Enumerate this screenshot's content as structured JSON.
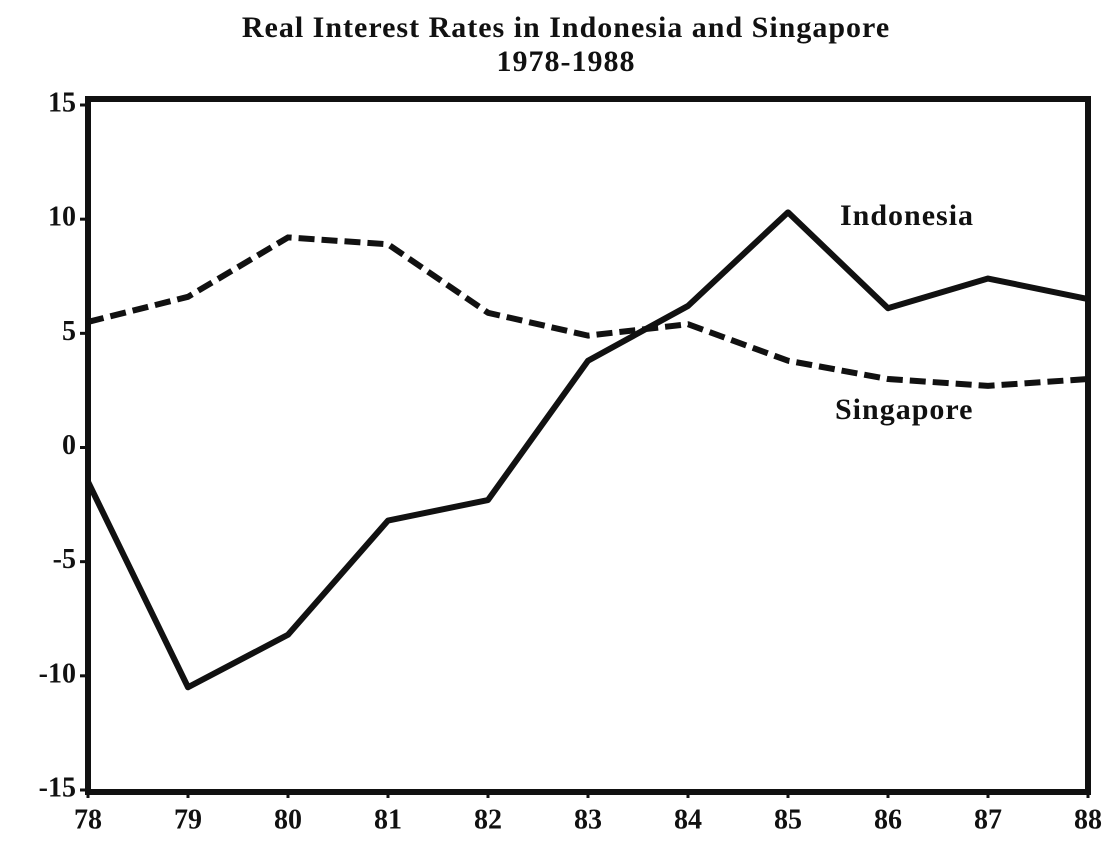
{
  "chart_data": {
    "type": "line",
    "title": "Real Interest Rates in Indonesia and Singapore",
    "subtitle": "1978-1988",
    "x": [
      78,
      79,
      80,
      81,
      82,
      83,
      84,
      85,
      86,
      87,
      88
    ],
    "series": [
      {
        "name": "Indonesia",
        "color": "#111111",
        "dash": false,
        "values": [
          -1.5,
          -10.5,
          -8.2,
          -3.2,
          -2.3,
          3.8,
          6.2,
          10.3,
          6.1,
          7.4,
          6.5
        ]
      },
      {
        "name": "Singapore",
        "color": "#111111",
        "dash": true,
        "values": [
          5.5,
          6.6,
          9.2,
          8.9,
          5.9,
          4.9,
          5.4,
          3.8,
          3.0,
          2.7,
          3.0
        ]
      }
    ],
    "xlim": [
      78,
      88
    ],
    "xticks": [
      78,
      79,
      80,
      81,
      82,
      83,
      84,
      85,
      86,
      87,
      88
    ],
    "ylim": [
      -15,
      15
    ],
    "yticks": [
      -15,
      -10,
      -5,
      0,
      5,
      10,
      15
    ],
    "grid": false
  }
}
